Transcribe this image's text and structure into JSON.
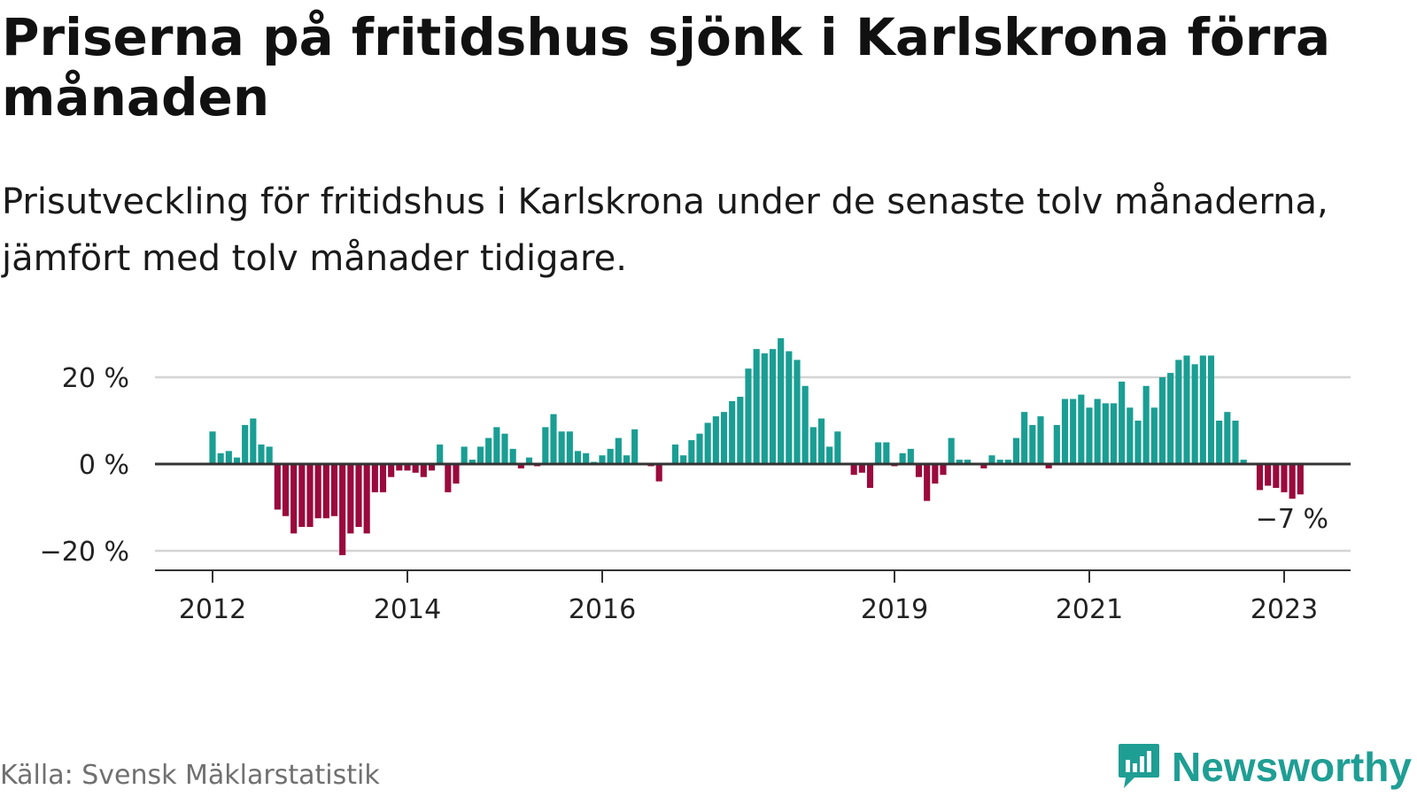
{
  "title": "Priserna på fritidshus sjönk i Karlskrona förra månaden",
  "subtitle": "Prisutveckling för fritidshus i Karlskrona under de senaste tolv månaderna, jämfört med tolv månader tidigare.",
  "source": "Källa: Svensk Mäklarstatistik",
  "brand": "Newsworthy",
  "icons": {
    "brand_logo": "bar-chart-speech-bubble-icon"
  },
  "colors": {
    "positive": "#1a9e93",
    "negative": "#9a0a3c",
    "zero_line": "#333333",
    "grid": "#d4d4d4",
    "axis": "#333333",
    "brand": "#1f9e94"
  },
  "chart_data": {
    "type": "bar",
    "title": "Priserna på fritidshus sjönk i Karlskrona förra månaden",
    "subtitle": "Prisutveckling för fritidshus i Karlskrona under de senaste tolv månaderna, jämfört med tolv månader tidigare.",
    "xlabel": "",
    "ylabel": "",
    "unit": "%",
    "ylim": [
      -24,
      30
    ],
    "yticks": [
      {
        "value": -20,
        "label": "−20 %"
      },
      {
        "value": 0,
        "label": "0 %"
      },
      {
        "value": 20,
        "label": "20 %"
      }
    ],
    "xticks": [
      {
        "date": "2012-01",
        "label": "2012"
      },
      {
        "date": "2014-01",
        "label": "2014"
      },
      {
        "date": "2016-01",
        "label": "2016"
      },
      {
        "date": "2019-01",
        "label": "2019"
      },
      {
        "date": "2021-01",
        "label": "2021"
      },
      {
        "date": "2023-01",
        "label": "2023"
      }
    ],
    "grid": true,
    "legend": "none",
    "annotation": {
      "date": "2023-01",
      "text": "−7 %"
    },
    "series": [
      {
        "data": [
          [
            "2012-01",
            7.5
          ],
          [
            "2012-02",
            2.5
          ],
          [
            "2012-03",
            3
          ],
          [
            "2012-04",
            1.5
          ],
          [
            "2012-05",
            9
          ],
          [
            "2012-06",
            10.5
          ],
          [
            "2012-07",
            4.5
          ],
          [
            "2012-08",
            4
          ],
          [
            "2012-09",
            -10.5
          ],
          [
            "2012-10",
            -12
          ],
          [
            "2012-11",
            -16
          ],
          [
            "2012-12",
            -14.5
          ],
          [
            "2013-01",
            -14.5
          ],
          [
            "2013-02",
            -12.5
          ],
          [
            "2013-03",
            -12.5
          ],
          [
            "2013-04",
            -12
          ],
          [
            "2013-05",
            -21
          ],
          [
            "2013-06",
            -16
          ],
          [
            "2013-07",
            -14.5
          ],
          [
            "2013-08",
            -16
          ],
          [
            "2013-09",
            -6.5
          ],
          [
            "2013-10",
            -6.5
          ],
          [
            "2013-11",
            -3
          ],
          [
            "2013-12",
            -1.5
          ],
          [
            "2014-01",
            -1.5
          ],
          [
            "2014-02",
            -2
          ],
          [
            "2014-03",
            -3
          ],
          [
            "2014-04",
            -1.5
          ],
          [
            "2014-05",
            4.5
          ],
          [
            "2014-06",
            -6.5
          ],
          [
            "2014-07",
            -4.5
          ],
          [
            "2014-08",
            4
          ],
          [
            "2014-09",
            1
          ],
          [
            "2014-10",
            4
          ],
          [
            "2014-11",
            6
          ],
          [
            "2014-12",
            8.5
          ],
          [
            "2015-01",
            7
          ],
          [
            "2015-02",
            3.5
          ],
          [
            "2015-03",
            -1
          ],
          [
            "2015-04",
            1.5
          ],
          [
            "2015-05",
            -0.5
          ],
          [
            "2015-06",
            8.5
          ],
          [
            "2015-07",
            11.5
          ],
          [
            "2015-08",
            7.5
          ],
          [
            "2015-09",
            7.5
          ],
          [
            "2015-10",
            3
          ],
          [
            "2015-11",
            2.5
          ],
          [
            "2015-12",
            0.5
          ],
          [
            "2016-01",
            2
          ],
          [
            "2016-02",
            3.5
          ],
          [
            "2016-03",
            6
          ],
          [
            "2016-04",
            2
          ],
          [
            "2016-05",
            8
          ],
          [
            "2016-06",
            0
          ],
          [
            "2016-07",
            -0.5
          ],
          [
            "2016-08",
            -4
          ],
          [
            "2016-09",
            0
          ],
          [
            "2016-10",
            4.5
          ],
          [
            "2016-11",
            2
          ],
          [
            "2016-12",
            5.5
          ],
          [
            "2017-01",
            7
          ],
          [
            "2017-02",
            9.5
          ],
          [
            "2017-03",
            11
          ],
          [
            "2017-04",
            12
          ],
          [
            "2017-05",
            14.5
          ],
          [
            "2017-06",
            15.5
          ],
          [
            "2017-07",
            22
          ],
          [
            "2017-08",
            26.5
          ],
          [
            "2017-09",
            25.5
          ],
          [
            "2017-10",
            26.5
          ],
          [
            "2017-11",
            29
          ],
          [
            "2017-12",
            26
          ],
          [
            "2018-01",
            24
          ],
          [
            "2018-02",
            18
          ],
          [
            "2018-03",
            8.5
          ],
          [
            "2018-04",
            10.5
          ],
          [
            "2018-05",
            4
          ],
          [
            "2018-06",
            7.5
          ],
          [
            "2018-07",
            0
          ],
          [
            "2018-08",
            -2.5
          ],
          [
            "2018-09",
            -2
          ],
          [
            "2018-10",
            -5.5
          ],
          [
            "2018-11",
            5
          ],
          [
            "2018-12",
            5
          ],
          [
            "2019-01",
            -0.5
          ],
          [
            "2019-02",
            2.5
          ],
          [
            "2019-03",
            3.5
          ],
          [
            "2019-04",
            -3
          ],
          [
            "2019-05",
            -8.5
          ],
          [
            "2019-06",
            -4.5
          ],
          [
            "2019-07",
            -2.5
          ],
          [
            "2019-08",
            6
          ],
          [
            "2019-09",
            1
          ],
          [
            "2019-10",
            1
          ],
          [
            "2019-11",
            0
          ],
          [
            "2019-12",
            -1
          ],
          [
            "2020-01",
            2
          ],
          [
            "2020-02",
            1
          ],
          [
            "2020-03",
            1
          ],
          [
            "2020-04",
            6
          ],
          [
            "2020-05",
            12
          ],
          [
            "2020-06",
            9
          ],
          [
            "2020-07",
            11
          ],
          [
            "2020-08",
            -1
          ],
          [
            "2020-09",
            9
          ],
          [
            "2020-10",
            15
          ],
          [
            "2020-11",
            15
          ],
          [
            "2020-12",
            16
          ],
          [
            "2021-01",
            13
          ],
          [
            "2021-02",
            15
          ],
          [
            "2021-03",
            14
          ],
          [
            "2021-04",
            14
          ],
          [
            "2021-05",
            19
          ],
          [
            "2021-06",
            13
          ],
          [
            "2021-07",
            10
          ],
          [
            "2021-08",
            18
          ],
          [
            "2021-09",
            13
          ],
          [
            "2021-10",
            20
          ],
          [
            "2021-11",
            21
          ],
          [
            "2021-12",
            24
          ],
          [
            "2022-01",
            25
          ],
          [
            "2022-02",
            23
          ],
          [
            "2022-03",
            25
          ],
          [
            "2022-04",
            25
          ],
          [
            "2022-05",
            10
          ],
          [
            "2022-06",
            12
          ],
          [
            "2022-07",
            10
          ],
          [
            "2022-08",
            1
          ],
          [
            "2022-09",
            0
          ],
          [
            "2022-10",
            -6
          ],
          [
            "2022-11",
            -5
          ],
          [
            "2022-12",
            -5.5
          ],
          [
            "2023-01",
            -6.5
          ],
          [
            "2023-02",
            -8
          ],
          [
            "2023-03",
            -7
          ]
        ]
      }
    ]
  }
}
